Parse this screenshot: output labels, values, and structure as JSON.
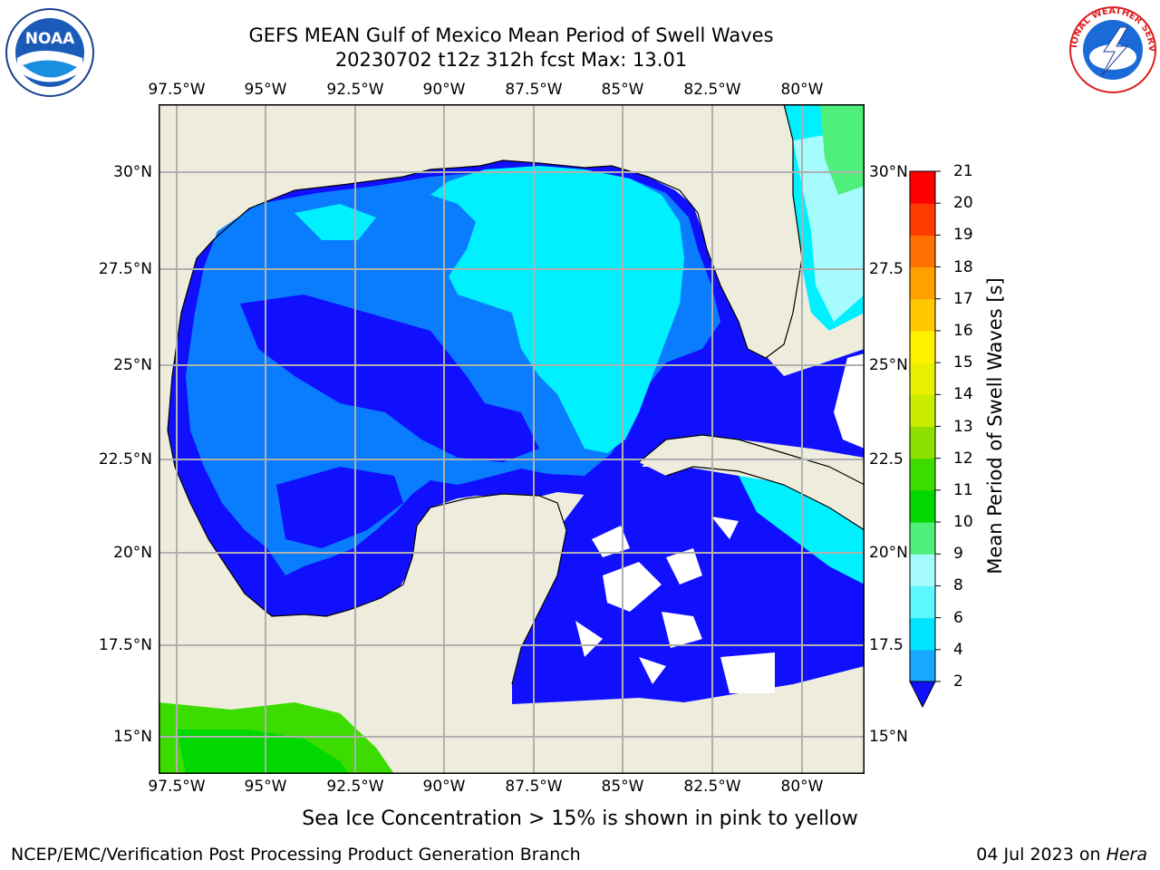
{
  "title_line1": "GEFS MEAN Gulf of Mexico Mean Period of Swell Waves",
  "title_line2": "20230702 t12z 312h fcst   Max: 13.01",
  "lon_labels": [
    "97.5°W",
    "95°W",
    "92.5°W",
    "90°W",
    "87.5°W",
    "85°W",
    "82.5°W",
    "80°W"
  ],
  "lat_labels_left": [
    "30°N",
    "27.5°N",
    "25°N",
    "22.5°N",
    "20°N",
    "17.5°N",
    "15°N"
  ],
  "lat_labels_right": [
    "30°N",
    "27.5",
    "25°N",
    "22.5",
    "20°N",
    "17.5",
    "15°N"
  ],
  "colorbar": {
    "label": "Mean Period of Swell Waves [s]",
    "ticks": [
      "2",
      "4",
      "6",
      "8",
      "9",
      "10",
      "11",
      "12",
      "13",
      "14",
      "15",
      "16",
      "17",
      "18",
      "19",
      "20",
      "21"
    ],
    "colors": [
      "#0a6cf5",
      "#19a8ff",
      "#00e5ff",
      "#5cf7ff",
      "#a6fbff",
      "#4fef7c",
      "#00d800",
      "#3ddc00",
      "#8ee000",
      "#c9ec00",
      "#e8f000",
      "#fff200",
      "#ffc800",
      "#ffa000",
      "#ff7000",
      "#ff3a00",
      "#ff0000"
    ],
    "extend_color": "#1010ff"
  },
  "note": "Sea Ice Concentration > 15% is shown in pink to yellow",
  "footer_left": "NCEP/EMC/Verification Post Processing Product Generation Branch",
  "footer_date": "04 Jul 2023 on",
  "footer_host": "Hera",
  "logo_left": "NOAA",
  "logo_right": "NATIONAL WEATHER SERVICE"
}
